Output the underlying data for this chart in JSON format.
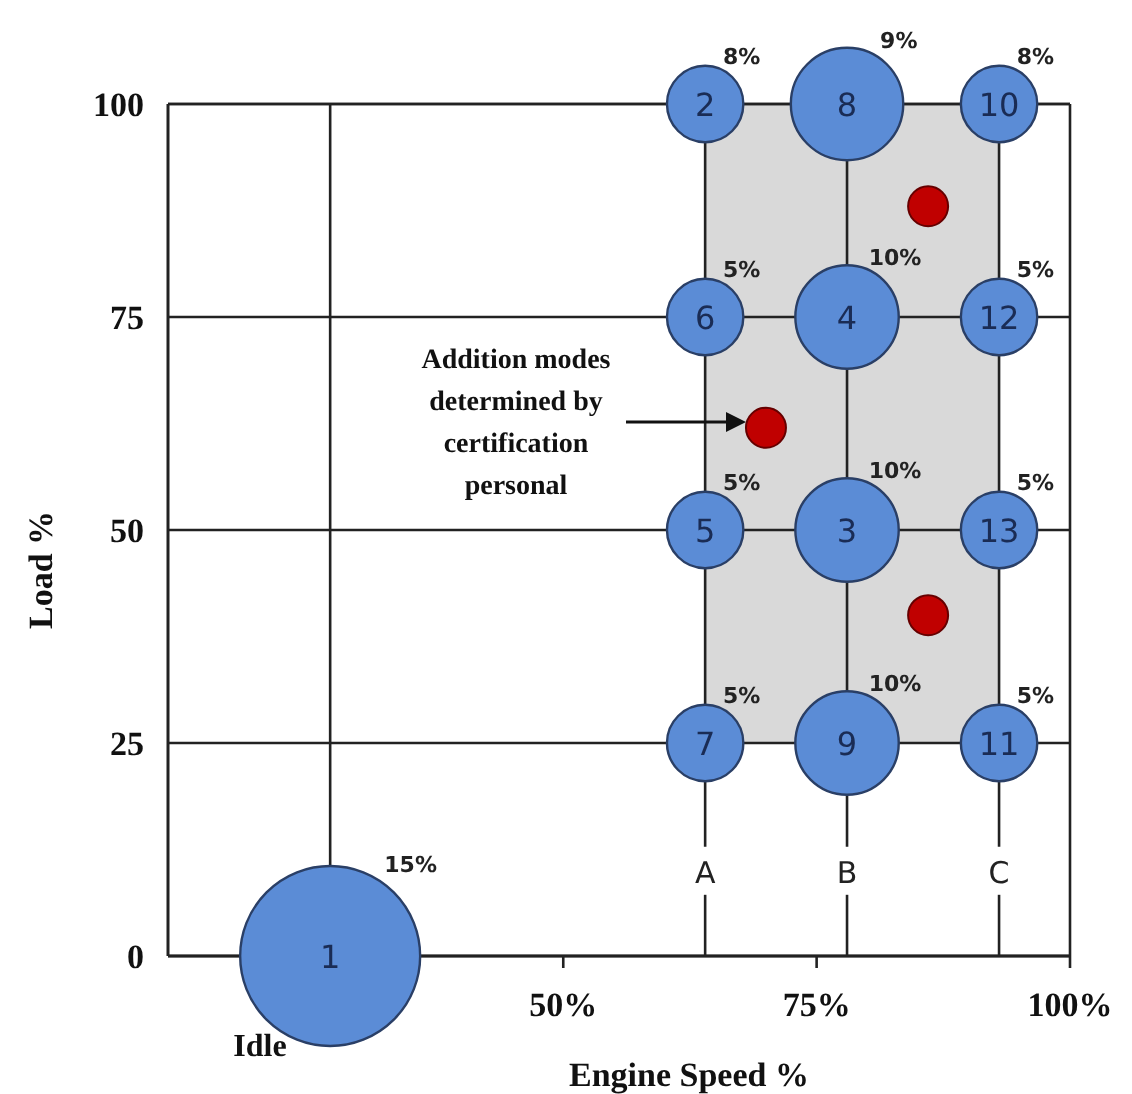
{
  "chart_data": {
    "type": "bubble",
    "xlabel": "Engine Speed %",
    "ylabel": "Load %",
    "xlim": [
      11,
      100
    ],
    "xticks": [
      {
        "value": 50,
        "label": "50%"
      },
      {
        "value": 75,
        "label": "75%"
      },
      {
        "value": 100,
        "label": "100%"
      }
    ],
    "ylim": [
      0,
      100
    ],
    "yticks": [
      0,
      25,
      50,
      75,
      100
    ],
    "grid": "y",
    "series": [
      {
        "color": "#5b8cd6",
        "x": [
          27,
          64,
          78,
          78,
          64,
          64,
          64,
          78,
          78,
          93,
          93,
          93,
          93
        ],
        "values": [
          0,
          100,
          50,
          75,
          50,
          75,
          25,
          100,
          25,
          100,
          25,
          75,
          50
        ],
        "sizes": [
          1,
          0.18,
          0.33,
          0.33,
          0.18,
          0.18,
          0.18,
          0.39,
          0.33,
          0.18,
          0.18,
          0.18,
          0.18
        ]
      },
      {
        "type": "scatter",
        "color": "#c00000",
        "marker": "circle",
        "x": [
          86,
          70,
          86
        ],
        "values": [
          88,
          62,
          40
        ]
      }
    ],
    "ref_lines": [
      {
        "axis": "x",
        "value": 27,
        "label": null
      },
      {
        "axis": "x",
        "value": 64,
        "label": "A"
      },
      {
        "axis": "x",
        "value": 78,
        "label": "B"
      },
      {
        "axis": "x",
        "value": 93,
        "label": "C"
      }
    ],
    "bands": [
      {
        "axis": "x",
        "from": 64,
        "to": 93,
        "color": "#d9d9d9"
      }
    ],
    "annotations": [
      {
        "text": "1",
        "x": 27,
        "y": 0
      },
      {
        "text": "2",
        "x": 64,
        "y": 100
      },
      {
        "text": "3",
        "x": 78,
        "y": 50
      },
      {
        "text": "4",
        "x": 78,
        "y": 75
      },
      {
        "text": "5",
        "x": 64,
        "y": 50
      },
      {
        "text": "6",
        "x": 64,
        "y": 75
      },
      {
        "text": "7",
        "x": 64,
        "y": 25
      },
      {
        "text": "8",
        "x": 78,
        "y": 100
      },
      {
        "text": "9",
        "x": 78,
        "y": 25
      },
      {
        "text": "10",
        "x": 93,
        "y": 100
      },
      {
        "text": "11",
        "x": 93,
        "y": 25
      },
      {
        "text": "12",
        "x": 93,
        "y": 75
      },
      {
        "text": "13",
        "x": 93,
        "y": 50
      },
      "15%",
      "8%",
      "10%",
      "10%",
      "5%",
      "5%",
      "5%",
      "9%",
      "10%",
      "8%",
      "5%",
      "5%",
      "5%",
      "Addition modes determined by certification personal",
      "Idle"
    ]
  }
}
